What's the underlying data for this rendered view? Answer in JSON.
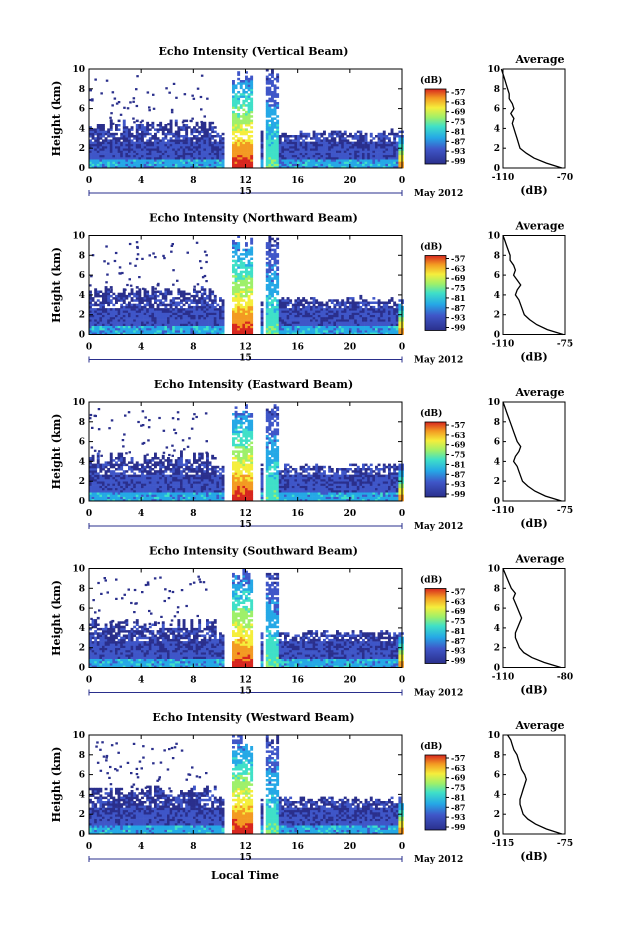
{
  "figure": {
    "shared_xlabel": "Local Time",
    "date_label": "May 2012",
    "day_label": "15"
  },
  "chart_data": [
    {
      "type": "heatmap",
      "title": "Echo Intensity (Vertical Beam)",
      "ylabel": "Height (km)",
      "xlim": [
        0,
        24
      ],
      "ylim": [
        0,
        10
      ],
      "x_ticks": [
        "0",
        "4",
        "8",
        "12",
        "16",
        "20",
        "0"
      ],
      "y_ticks": [
        "0",
        "2",
        "4",
        "6",
        "8",
        "10"
      ],
      "colorbar": {
        "unit": "(dB)",
        "ticks": [
          "-57",
          "-63",
          "-69",
          "-75",
          "-81",
          "-87",
          "-93",
          "-99"
        ]
      },
      "average_profile": {
        "title": "Average",
        "xlabel": "(dB)",
        "xlim": [
          -110,
          -70
        ],
        "x_ticks": [
          "-110",
          "-70"
        ],
        "y_ticks": [
          "0",
          "2",
          "4",
          "6",
          "8",
          "10"
        ],
        "height_km": [
          0,
          0.5,
          1,
          1.5,
          2,
          2.5,
          3,
          3.5,
          4,
          4.5,
          5,
          5.5,
          6,
          6.5,
          7,
          7.5,
          8,
          8.5,
          9,
          9.5,
          10
        ],
        "db": [
          -72,
          -82,
          -90,
          -95,
          -99,
          -100,
          -101,
          -102,
          -103,
          -104,
          -103,
          -105,
          -103,
          -104,
          -106,
          -106,
          -107,
          -108,
          -109,
          -110,
          -111
        ]
      }
    },
    {
      "type": "heatmap",
      "title": "Echo Intensity (Northward Beam)",
      "ylabel": "Height (km)",
      "xlim": [
        0,
        24
      ],
      "ylim": [
        0,
        10
      ],
      "x_ticks": [
        "0",
        "4",
        "8",
        "12",
        "16",
        "20",
        "0"
      ],
      "y_ticks": [
        "0",
        "2",
        "4",
        "6",
        "8",
        "10"
      ],
      "colorbar": {
        "unit": "(dB)",
        "ticks": [
          "-57",
          "-63",
          "-69",
          "-75",
          "-81",
          "-87",
          "-93",
          "-99"
        ]
      },
      "average_profile": {
        "title": "Average",
        "xlabel": "(dB)",
        "xlim": [
          -110,
          -75
        ],
        "x_ticks": [
          "-110",
          "-75"
        ],
        "y_ticks": [
          "0",
          "2",
          "4",
          "6",
          "8",
          "10"
        ],
        "height_km": [
          0,
          0.5,
          1,
          1.5,
          2,
          2.5,
          3,
          3.5,
          4,
          4.5,
          5,
          5.5,
          6,
          6.5,
          7,
          7.5,
          8,
          8.5,
          9,
          9.5,
          10
        ],
        "db": [
          -76,
          -85,
          -91,
          -95,
          -98,
          -99,
          -100,
          -101,
          -103,
          -102,
          -100,
          -102,
          -104,
          -103,
          -104,
          -106,
          -106,
          -107,
          -108,
          -109,
          -110
        ]
      }
    },
    {
      "type": "heatmap",
      "title": "Echo Intensity (Eastward Beam)",
      "ylabel": "Height (km)",
      "xlim": [
        0,
        24
      ],
      "ylim": [
        0,
        10
      ],
      "x_ticks": [
        "0",
        "4",
        "8",
        "12",
        "16",
        "20",
        "0"
      ],
      "y_ticks": [
        "0",
        "2",
        "4",
        "6",
        "8",
        "10"
      ],
      "colorbar": {
        "unit": "(dB)",
        "ticks": [
          "-57",
          "-63",
          "-69",
          "-75",
          "-81",
          "-87",
          "-93",
          "-99"
        ]
      },
      "average_profile": {
        "title": "Average",
        "xlabel": "(dB)",
        "xlim": [
          -110,
          -75
        ],
        "x_ticks": [
          "-110",
          "-75"
        ],
        "y_ticks": [
          "0",
          "2",
          "4",
          "6",
          "8",
          "10"
        ],
        "height_km": [
          0,
          0.5,
          1,
          1.5,
          2,
          2.5,
          3,
          3.5,
          4,
          4.5,
          5,
          5.5,
          6,
          6.5,
          7,
          7.5,
          8,
          8.5,
          9,
          9.5,
          10
        ],
        "db": [
          -77,
          -86,
          -92,
          -96,
          -99,
          -100,
          -101,
          -102,
          -104,
          -103,
          -101,
          -100,
          -102,
          -103,
          -104,
          -105,
          -106,
          -107,
          -108,
          -109,
          -110
        ]
      }
    },
    {
      "type": "heatmap",
      "title": "Echo Intensity (Southward Beam)",
      "ylabel": "Height (km)",
      "xlim": [
        0,
        24
      ],
      "ylim": [
        0,
        10
      ],
      "x_ticks": [
        "0",
        "4",
        "8",
        "12",
        "16",
        "20",
        "0"
      ],
      "y_ticks": [
        "0",
        "2",
        "4",
        "6",
        "8",
        "10"
      ],
      "colorbar": {
        "unit": "(dB)",
        "ticks": [
          "-57",
          "-63",
          "-69",
          "-75",
          "-81",
          "-87",
          "-93",
          "-99"
        ]
      },
      "average_profile": {
        "title": "Average",
        "xlabel": "(dB)",
        "xlim": [
          -110,
          -80
        ],
        "x_ticks": [
          "-110",
          "-80"
        ],
        "y_ticks": [
          "0",
          "2",
          "4",
          "6",
          "8",
          "10"
        ],
        "height_km": [
          0,
          0.5,
          1,
          1.5,
          2,
          2.5,
          3,
          3.5,
          4,
          4.5,
          5,
          5.5,
          6,
          6.5,
          7,
          7.5,
          8,
          8.5,
          9,
          9.5,
          10
        ],
        "db": [
          -82,
          -90,
          -96,
          -100,
          -102,
          -103,
          -104,
          -104,
          -103,
          -102,
          -101,
          -102,
          -103,
          -104,
          -105,
          -104,
          -106,
          -107,
          -108,
          -109,
          -110
        ]
      }
    },
    {
      "type": "heatmap",
      "title": "Echo Intensity (Westward Beam)",
      "ylabel": "Height (km)",
      "xlim": [
        0,
        24
      ],
      "ylim": [
        0,
        10
      ],
      "x_ticks": [
        "0",
        "4",
        "8",
        "12",
        "16",
        "20",
        "0"
      ],
      "y_ticks": [
        "0",
        "2",
        "4",
        "6",
        "8",
        "10"
      ],
      "colorbar": {
        "unit": "(dB)",
        "ticks": [
          "-57",
          "-63",
          "-69",
          "-75",
          "-81",
          "-87",
          "-93",
          "-99"
        ]
      },
      "average_profile": {
        "title": "Average",
        "xlabel": "(dB)",
        "xlim": [
          -115,
          -75
        ],
        "x_ticks": [
          "-115",
          "-75"
        ],
        "y_ticks": [
          "0",
          "2",
          "4",
          "6",
          "8",
          "10"
        ],
        "height_km": [
          0,
          0.5,
          1,
          1.5,
          2,
          2.5,
          3,
          3.5,
          4,
          4.5,
          5,
          5.5,
          6,
          6.5,
          7,
          7.5,
          8,
          8.5,
          9,
          9.5,
          10
        ],
        "db": [
          -77,
          -87,
          -94,
          -99,
          -102,
          -103,
          -104,
          -104,
          -103,
          -102,
          -101,
          -100,
          -101,
          -103,
          -104,
          -105,
          -106,
          -108,
          -109,
          -110,
          -112
        ]
      }
    }
  ]
}
